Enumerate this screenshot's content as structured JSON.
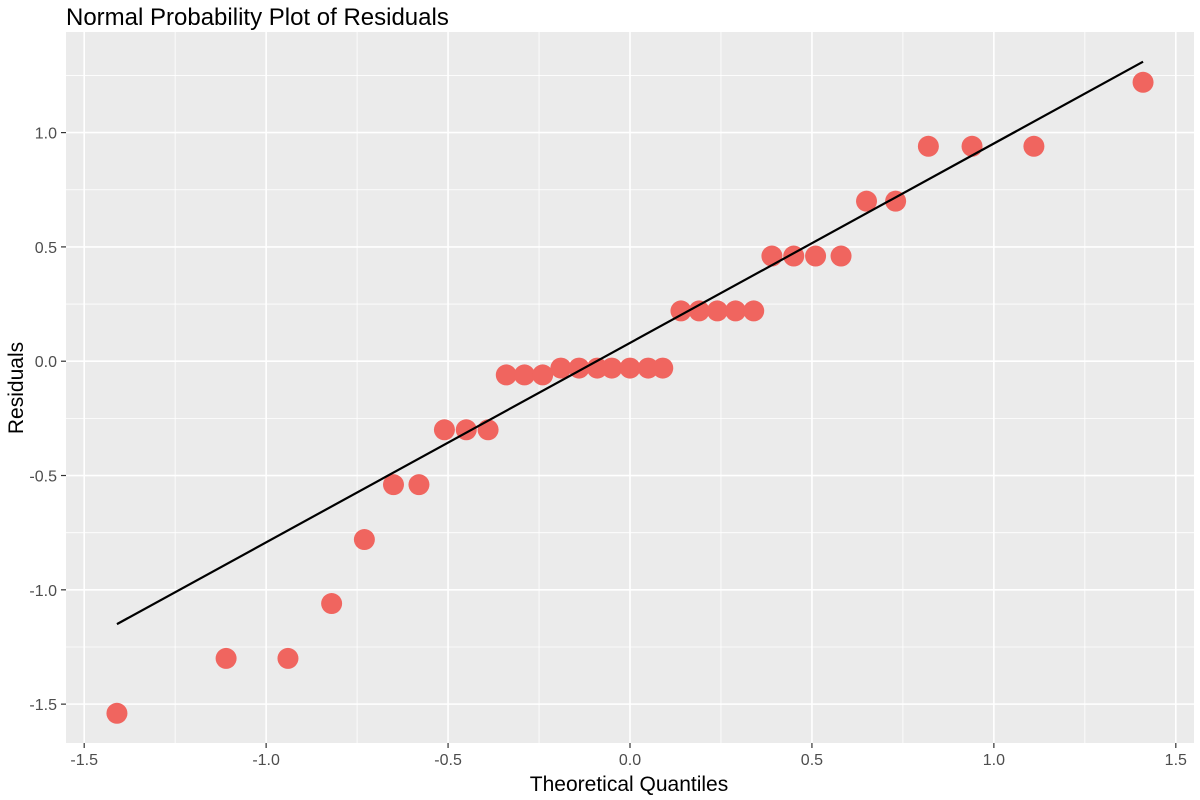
{
  "chart_data": {
    "type": "scatter",
    "title": "Normal Probability Plot of Residuals",
    "xlabel": "Theoretical Quantiles",
    "ylabel": "Residuals",
    "xlim": [
      -1.55,
      1.55
    ],
    "ylim": [
      -1.67,
      1.44
    ],
    "x_ticks": [
      -1.5,
      -1.0,
      -0.5,
      0.0,
      0.5,
      1.0,
      1.5
    ],
    "x_tick_labels": [
      "-1.5",
      "-1.0",
      "-0.5",
      "0.0",
      "0.5",
      "1.0",
      "1.5"
    ],
    "y_ticks": [
      -1.5,
      -1.0,
      -0.5,
      0.0,
      0.5,
      1.0
    ],
    "y_tick_labels": [
      "-1.5",
      "-1.0",
      "-0.5",
      "0.0",
      "0.5",
      "1.0"
    ],
    "grid": true,
    "legend": "none",
    "colors": {
      "panel_background": "#EBEBEB",
      "grid": "#FFFFFF",
      "point": "#F0655F",
      "reference_line": "#000000"
    },
    "points": [
      {
        "x": -1.41,
        "y": -1.54
      },
      {
        "x": -1.11,
        "y": -1.3
      },
      {
        "x": -0.94,
        "y": -1.3
      },
      {
        "x": -0.82,
        "y": -1.06
      },
      {
        "x": -0.73,
        "y": -0.78
      },
      {
        "x": -0.65,
        "y": -0.54
      },
      {
        "x": -0.58,
        "y": -0.54
      },
      {
        "x": -0.51,
        "y": -0.3
      },
      {
        "x": -0.45,
        "y": -0.3
      },
      {
        "x": -0.39,
        "y": -0.3
      },
      {
        "x": -0.34,
        "y": -0.06
      },
      {
        "x": -0.29,
        "y": -0.06
      },
      {
        "x": -0.24,
        "y": -0.06
      },
      {
        "x": -0.19,
        "y": -0.03
      },
      {
        "x": -0.14,
        "y": -0.03
      },
      {
        "x": -0.09,
        "y": -0.03
      },
      {
        "x": -0.05,
        "y": -0.03
      },
      {
        "x": 0.0,
        "y": -0.03
      },
      {
        "x": 0.05,
        "y": -0.03
      },
      {
        "x": 0.09,
        "y": -0.03
      },
      {
        "x": 0.14,
        "y": 0.22
      },
      {
        "x": 0.19,
        "y": 0.22
      },
      {
        "x": 0.24,
        "y": 0.22
      },
      {
        "x": 0.29,
        "y": 0.22
      },
      {
        "x": 0.34,
        "y": 0.22
      },
      {
        "x": 0.39,
        "y": 0.46
      },
      {
        "x": 0.45,
        "y": 0.46
      },
      {
        "x": 0.51,
        "y": 0.46
      },
      {
        "x": 0.58,
        "y": 0.46
      },
      {
        "x": 0.65,
        "y": 0.7
      },
      {
        "x": 0.73,
        "y": 0.7
      },
      {
        "x": 0.82,
        "y": 0.94
      },
      {
        "x": 0.94,
        "y": 0.94
      },
      {
        "x": 1.11,
        "y": 0.94
      },
      {
        "x": 1.41,
        "y": 1.22
      }
    ],
    "reference_line": {
      "x": [
        -1.41,
        1.41
      ],
      "y": [
        -1.15,
        1.31
      ]
    }
  }
}
